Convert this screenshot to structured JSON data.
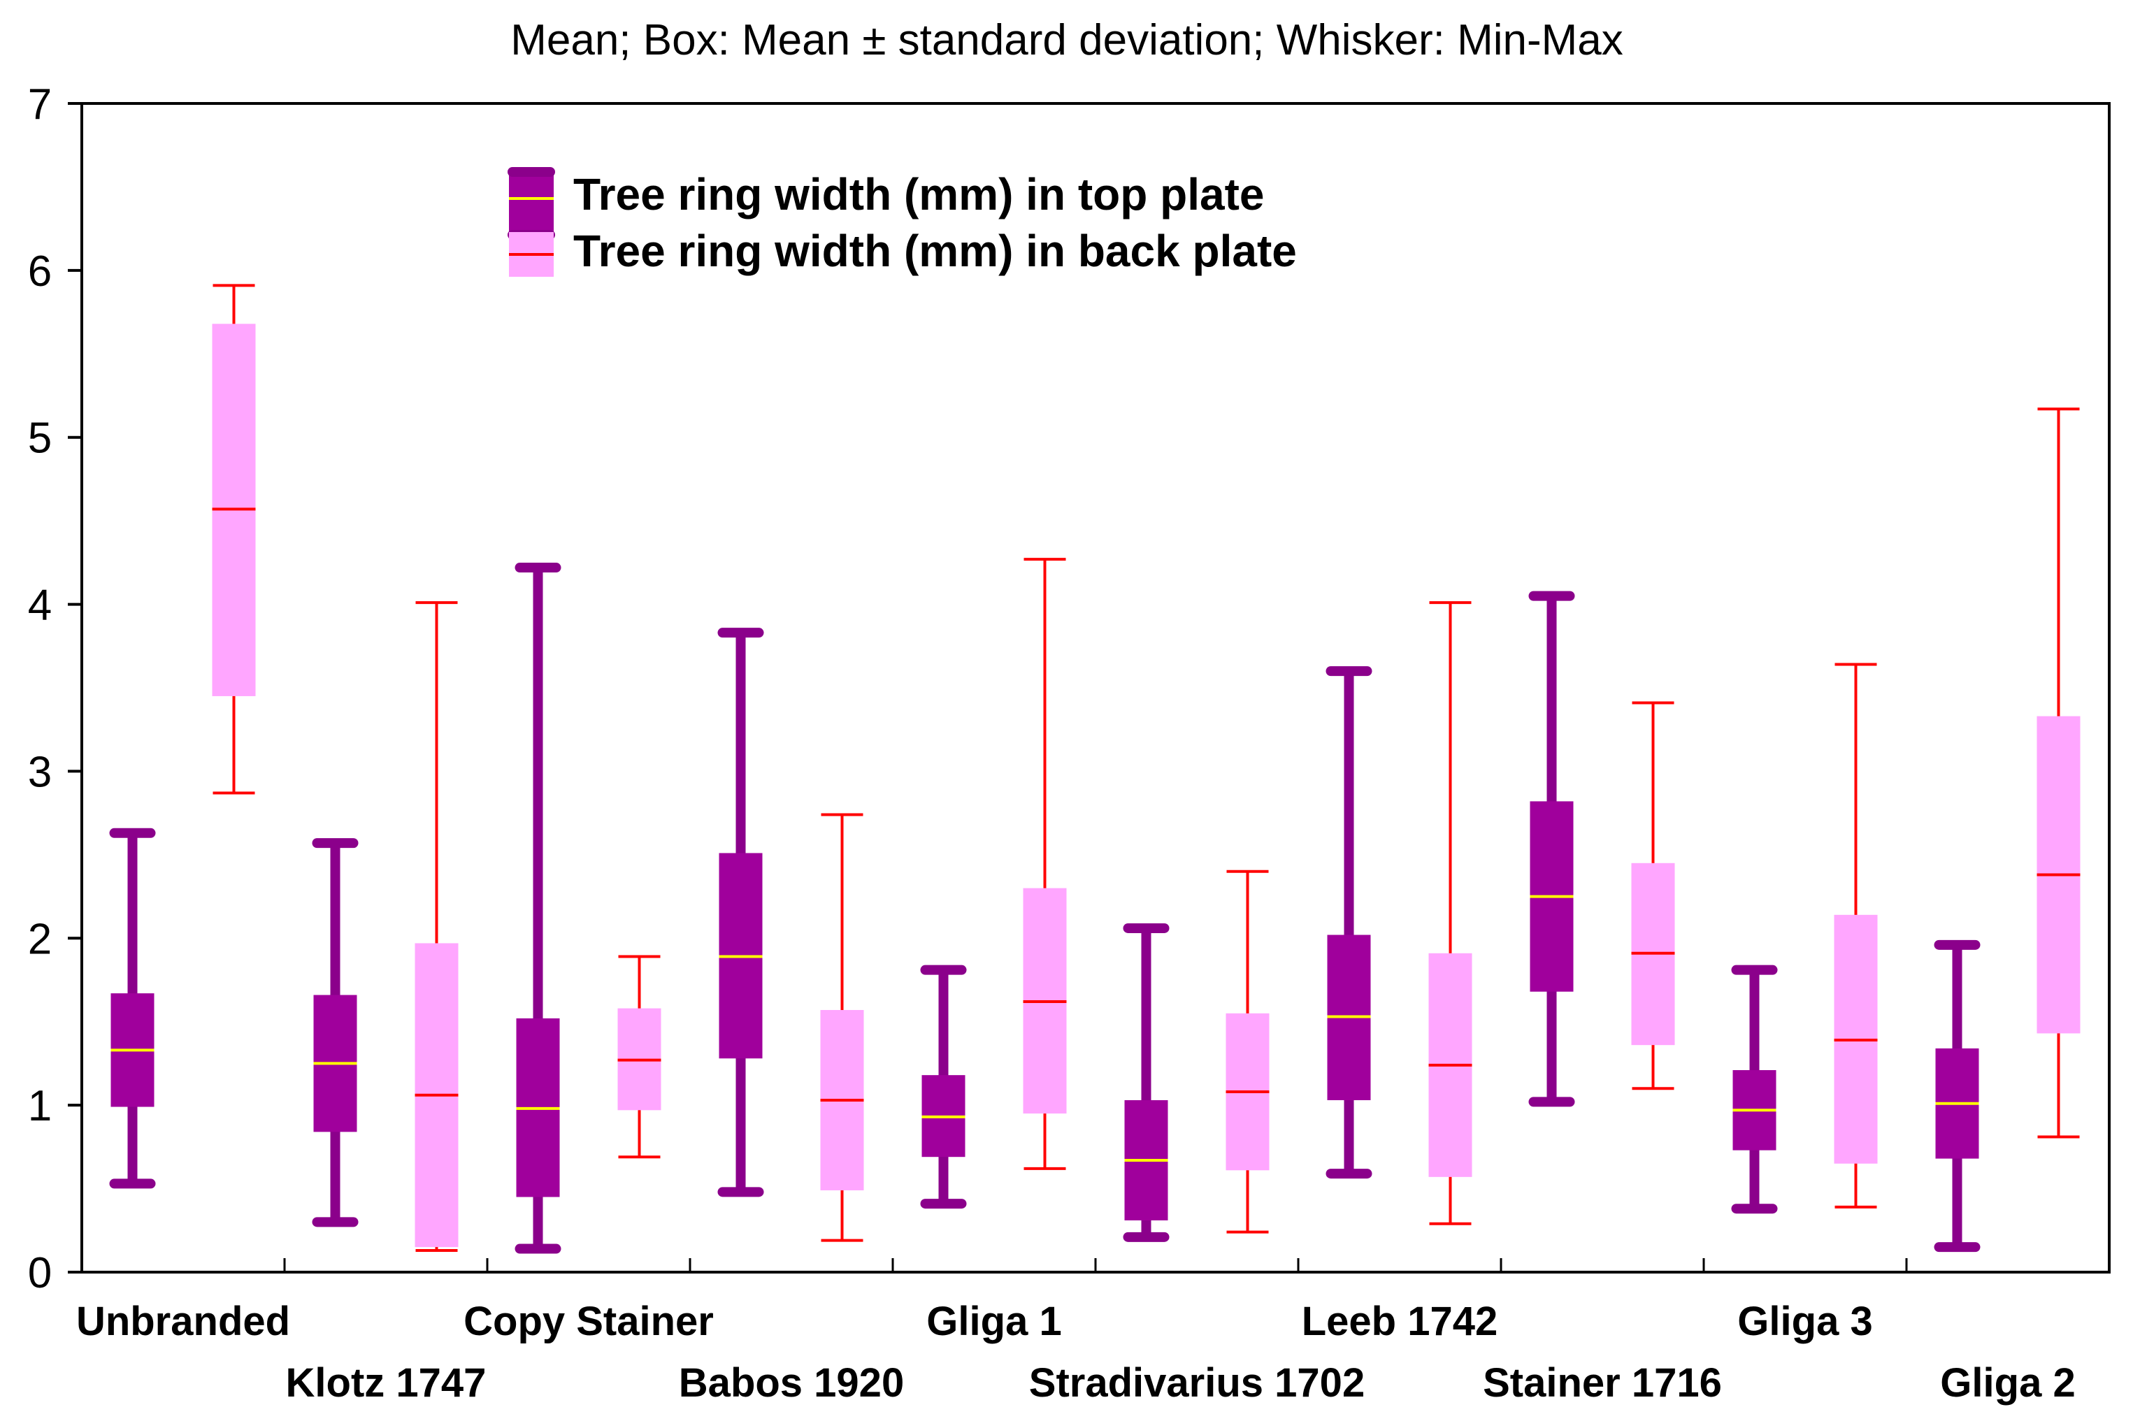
{
  "chart_data": {
    "type": "box",
    "title": "Mean; Box: Mean ± standard deviation; Whisker: Min-Max",
    "xlabel": "",
    "ylabel": "",
    "ylim": [
      0,
      7
    ],
    "yticks": [
      "0",
      "1",
      "2",
      "3",
      "4",
      "5",
      "6",
      "7"
    ],
    "grid": false,
    "legend_position": "top-center",
    "categories": [
      "Unbranded",
      "Klotz 1747",
      "Copy Stainer",
      "Babos 1920",
      "Gliga 1",
      "Stradivarius 1702",
      "Leeb 1742",
      "Stainer 1716",
      "Gliga 3",
      "Gliga 2"
    ],
    "series": [
      {
        "name": "Tree ring width (mm) in top plate",
        "box_color": "#A0009C",
        "mean_color": "#FFFF00",
        "whisker_color": "#8B008B",
        "values": [
          {
            "min": 0.53,
            "low": 0.99,
            "mean": 1.33,
            "high": 1.67,
            "max": 2.63
          },
          {
            "min": 0.3,
            "low": 0.84,
            "mean": 1.25,
            "high": 1.66,
            "max": 2.57
          },
          {
            "min": 0.14,
            "low": 0.45,
            "mean": 0.98,
            "high": 1.52,
            "max": 4.22
          },
          {
            "min": 0.48,
            "low": 1.28,
            "mean": 1.89,
            "high": 2.51,
            "max": 3.83
          },
          {
            "min": 0.41,
            "low": 0.69,
            "mean": 0.93,
            "high": 1.18,
            "max": 1.81
          },
          {
            "min": 0.21,
            "low": 0.31,
            "mean": 0.67,
            "high": 1.03,
            "max": 2.06
          },
          {
            "min": 0.59,
            "low": 1.03,
            "mean": 1.53,
            "high": 2.02,
            "max": 3.6
          },
          {
            "min": 1.02,
            "low": 1.68,
            "mean": 2.25,
            "high": 2.82,
            "max": 4.05
          },
          {
            "min": 0.38,
            "low": 0.73,
            "mean": 0.97,
            "high": 1.21,
            "max": 1.81
          },
          {
            "min": 0.15,
            "low": 0.68,
            "mean": 1.01,
            "high": 1.34,
            "max": 1.96
          }
        ]
      },
      {
        "name": "Tree ring width (mm) in back plate",
        "box_color": "#FFA6FF",
        "mean_color": "#FF0000",
        "whisker_color": "#FF0000",
        "values": [
          {
            "min": 2.87,
            "low": 3.45,
            "mean": 4.57,
            "high": 5.68,
            "max": 5.91
          },
          {
            "min": 0.13,
            "low": 0.15,
            "mean": 1.06,
            "high": 1.97,
            "max": 4.01
          },
          {
            "min": 0.69,
            "low": 0.97,
            "mean": 1.27,
            "high": 1.58,
            "max": 1.89
          },
          {
            "min": 0.19,
            "low": 0.49,
            "mean": 1.03,
            "high": 1.57,
            "max": 2.74
          },
          {
            "min": 0.62,
            "low": 0.95,
            "mean": 1.62,
            "high": 2.3,
            "max": 4.27
          },
          {
            "min": 0.24,
            "low": 0.61,
            "mean": 1.08,
            "high": 1.55,
            "max": 2.4
          },
          {
            "min": 0.29,
            "low": 0.57,
            "mean": 1.24,
            "high": 1.91,
            "max": 4.01
          },
          {
            "min": 1.1,
            "low": 1.36,
            "mean": 1.91,
            "high": 2.45,
            "max": 3.41
          },
          {
            "min": 0.39,
            "low": 0.65,
            "mean": 1.39,
            "high": 2.14,
            "max": 3.64
          },
          {
            "min": 0.81,
            "low": 1.43,
            "mean": 2.38,
            "high": 3.33,
            "max": 5.17
          }
        ]
      }
    ]
  }
}
